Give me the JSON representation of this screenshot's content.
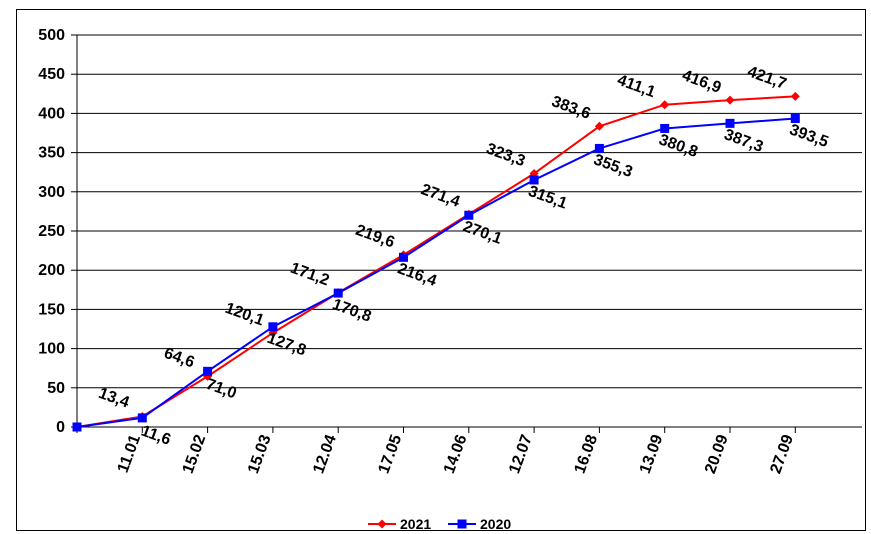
{
  "chart_data": {
    "type": "line",
    "categories": [
      "",
      "11.01",
      "15.02",
      "15.03",
      "12.04",
      "17.05",
      "14.06",
      "12.07",
      "16.08",
      "13.09",
      "20.09",
      "27.09"
    ],
    "series": [
      {
        "name": "2021",
        "color": "#ff0000",
        "marker": "diamond",
        "values": [
          0,
          13.4,
          64.6,
          120.1,
          171.2,
          219.6,
          271.4,
          323.3,
          383.6,
          411.1,
          416.9,
          421.7
        ],
        "labels": [
          "",
          "13,4",
          "64,6",
          "120,1",
          "171,2",
          "219,6",
          "271,4",
          "323,3",
          "383,6",
          "411,1",
          "416,9",
          "421,7"
        ]
      },
      {
        "name": "2020",
        "color": "#0000ff",
        "marker": "square",
        "values": [
          0,
          11.6,
          71.0,
          127.8,
          170.8,
          216.4,
          270.1,
          315.1,
          355.3,
          380.8,
          387.3,
          393.5
        ],
        "labels": [
          "",
          "11,6",
          "71,0",
          "127,8",
          "170,8",
          "216,4",
          "270,1",
          "315,1",
          "355,3",
          "380,8",
          "387,3",
          "393,5"
        ]
      }
    ],
    "y_ticks": [
      "0",
      "50",
      "100",
      "150",
      "200",
      "250",
      "300",
      "350",
      "400",
      "450",
      "500"
    ],
    "ylim": [
      0,
      500
    ],
    "grid": "horizontal",
    "legend": "bottom"
  }
}
